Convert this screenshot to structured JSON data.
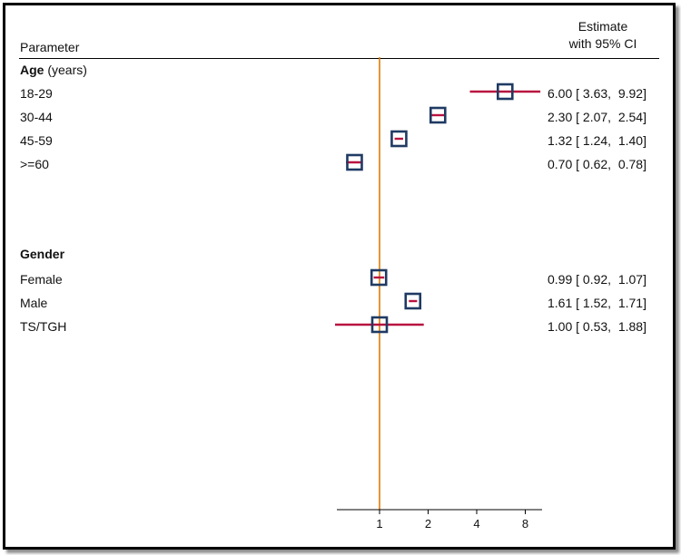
{
  "headers": {
    "parameter": "Parameter",
    "estimate_line1": "Estimate",
    "estimate_line2": "with 95% CI"
  },
  "groups": [
    {
      "title": "Age",
      "title_suffix": " (years)"
    },
    {
      "title": "Gender",
      "title_suffix": ""
    }
  ],
  "chart_data": {
    "type": "forest",
    "reference_line": 1,
    "x_scale": "log2",
    "xlim": [
      0.5,
      10
    ],
    "x_ticks": [
      1,
      2,
      4,
      8
    ],
    "x_tick_labels": [
      "1",
      "2",
      "4",
      "8"
    ],
    "colors": {
      "marker": "#1f3a63",
      "ci": "#b8123f",
      "reference": "#e07b00"
    },
    "rows": [
      {
        "group": 0,
        "label": "18-29",
        "estimate": 6.0,
        "lower": 3.63,
        "upper": 9.92,
        "text": "6.00 [ 3.63,  9.92]"
      },
      {
        "group": 0,
        "label": "30-44",
        "estimate": 2.3,
        "lower": 2.07,
        "upper": 2.54,
        "text": "2.30 [ 2.07,  2.54]"
      },
      {
        "group": 0,
        "label": "45-59",
        "estimate": 1.32,
        "lower": 1.24,
        "upper": 1.4,
        "text": "1.32 [ 1.24,  1.40]"
      },
      {
        "group": 0,
        "label": ">=60",
        "estimate": 0.7,
        "lower": 0.62,
        "upper": 0.78,
        "text": "0.70 [ 0.62,  0.78]"
      },
      {
        "group": 1,
        "label": "Female",
        "estimate": 0.99,
        "lower": 0.92,
        "upper": 1.07,
        "text": "0.99 [ 0.92,  1.07]"
      },
      {
        "group": 1,
        "label": "Male",
        "estimate": 1.61,
        "lower": 1.52,
        "upper": 1.71,
        "text": "1.61 [ 1.52,  1.71]"
      },
      {
        "group": 1,
        "label": "TS/TGH",
        "estimate": 1.0,
        "lower": 0.53,
        "upper": 1.88,
        "text": "1.00 [ 0.53,  1.88]"
      }
    ]
  }
}
